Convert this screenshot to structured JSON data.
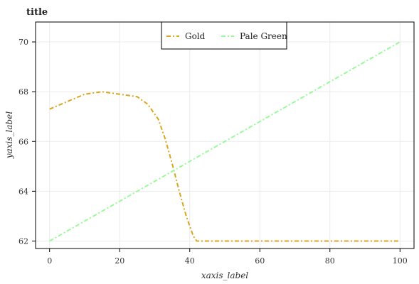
{
  "chart_data": {
    "type": "line",
    "title": "title",
    "xlabel": "xaxis_label",
    "ylabel": "yaxis_label",
    "xlim": [
      -4,
      104
    ],
    "ylim": [
      61.7,
      70.8
    ],
    "xticks": [
      0,
      20,
      40,
      60,
      80,
      100
    ],
    "yticks": [
      62,
      64,
      66,
      68,
      70
    ],
    "xtick_labels": [
      "0",
      "20",
      "40",
      "60",
      "80",
      "100"
    ],
    "ytick_labels": [
      "62",
      "64",
      "66",
      "68",
      "70"
    ],
    "grid": true,
    "legend_position": "top-center",
    "series": [
      {
        "name": "Gold",
        "color": "#daa520",
        "dash": "dashdot",
        "points": [
          [
            0,
            67.3
          ],
          [
            5,
            67.6
          ],
          [
            10,
            67.9
          ],
          [
            15,
            68.0
          ],
          [
            20,
            67.9
          ],
          [
            25,
            67.8
          ],
          [
            28,
            67.5
          ],
          [
            31,
            66.9
          ],
          [
            33,
            66.1
          ],
          [
            35,
            65.1
          ],
          [
            37,
            64.0
          ],
          [
            39,
            63.0
          ],
          [
            41,
            62.2
          ],
          [
            42,
            62.0
          ],
          [
            50,
            62.0
          ],
          [
            60,
            62.0
          ],
          [
            70,
            62.0
          ],
          [
            80,
            62.0
          ],
          [
            90,
            62.0
          ],
          [
            100,
            62.0
          ]
        ]
      },
      {
        "name": "Pale Green",
        "color": "#98fb98",
        "dash": "dashdot",
        "points": [
          [
            0,
            62.0
          ],
          [
            100,
            70.0
          ]
        ]
      }
    ]
  }
}
